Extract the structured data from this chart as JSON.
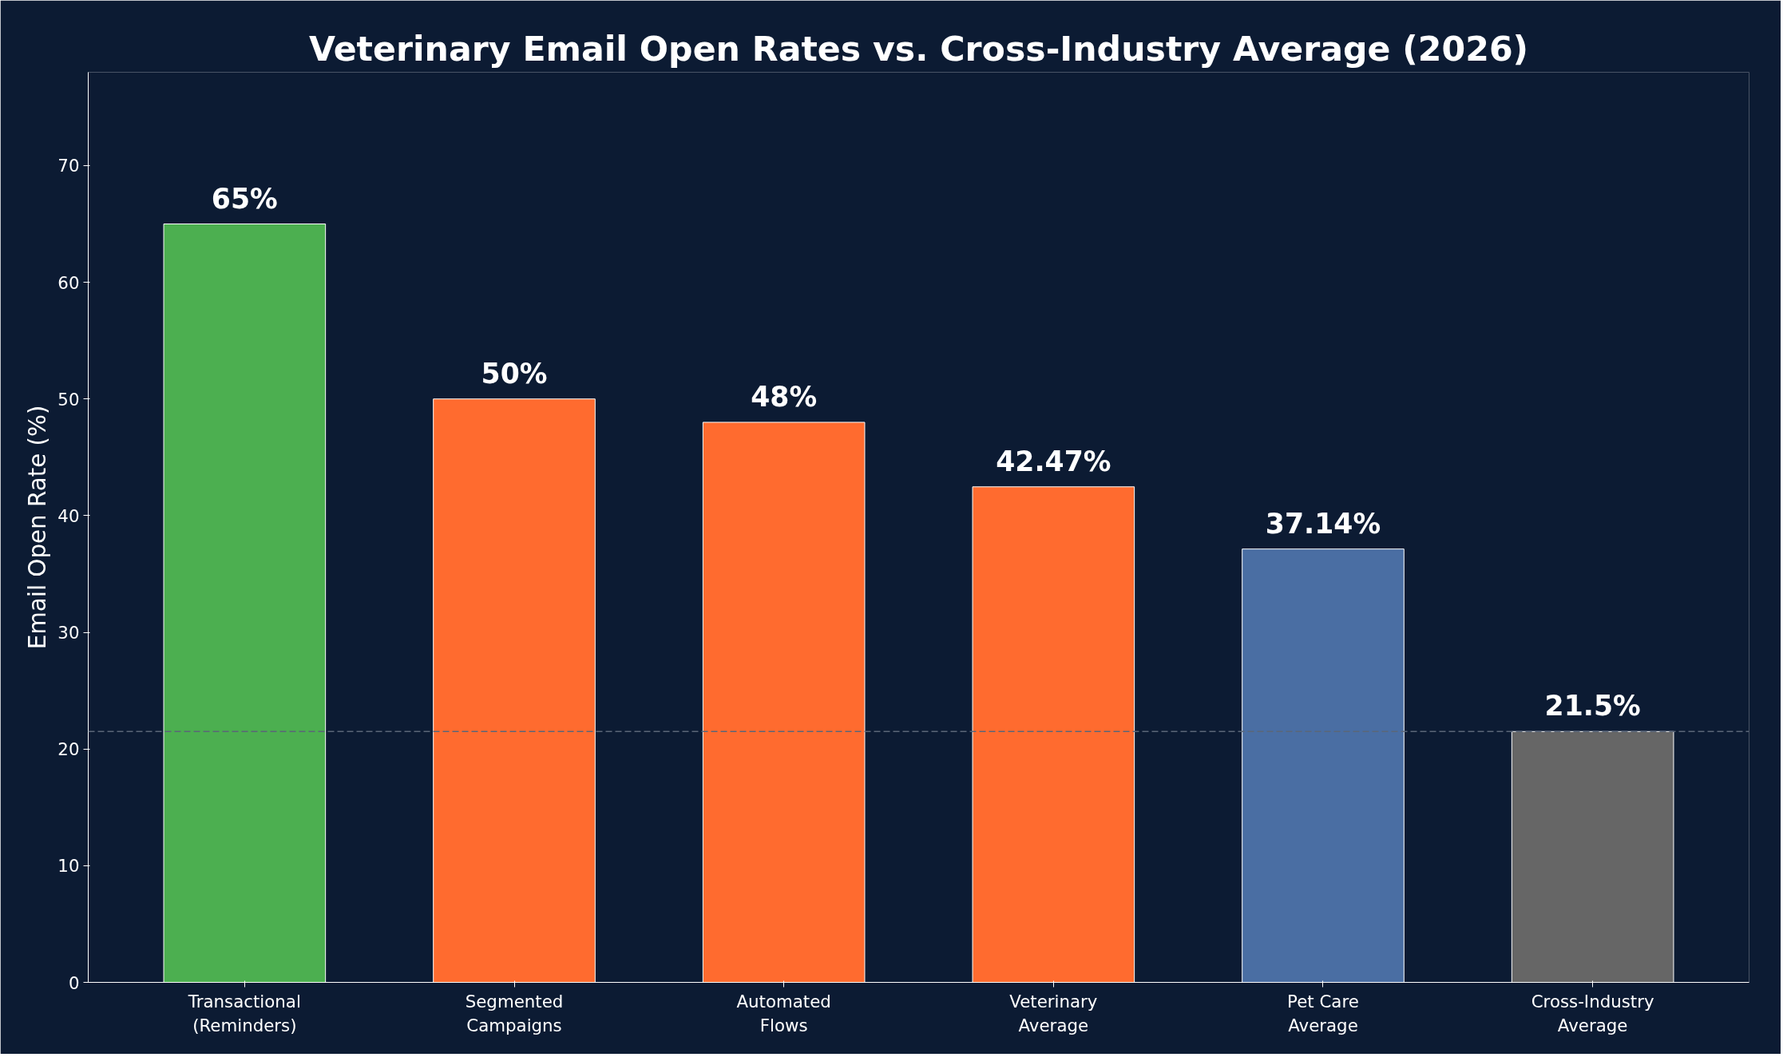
{
  "chart_data": {
    "type": "bar",
    "title": "Veterinary Email Open Rates vs. Cross-Industry Average (2026)",
    "ylabel": "Email Open Rate (%)",
    "categories": [
      "Transactional\n(Reminders)",
      "Segmented\nCampaigns",
      "Automated\nFlows",
      "Veterinary\nAverage",
      "Pet Care\nAverage",
      "Cross-Industry\nAverage"
    ],
    "values": [
      65,
      50,
      48,
      42.47,
      37.14,
      21.5
    ],
    "colors": [
      "#4caf50",
      "#ff6b2f",
      "#ff6b2f",
      "#ff6b2f",
      "#4a6ea3",
      "#666666"
    ],
    "value_labels": [
      "65%",
      "50%",
      "48%",
      "42.47%",
      "37.14%",
      "21.5%"
    ],
    "ylim": [
      0,
      78
    ],
    "yticks": [
      0,
      10,
      20,
      30,
      40,
      50,
      60,
      70
    ],
    "grid": false,
    "ref_lines": [
      {
        "axis": "y",
        "value": 21.5,
        "color": "#5a6678",
        "line_style": "dashed"
      }
    ]
  }
}
